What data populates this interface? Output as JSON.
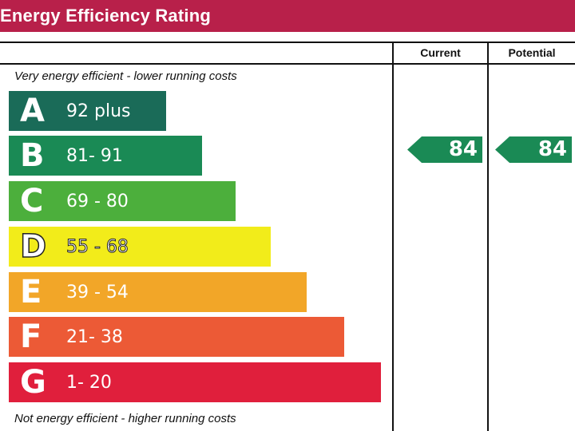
{
  "header": {
    "title": "Energy Efficiency Rating"
  },
  "columns": {
    "current": "Current",
    "potential": "Potential"
  },
  "notes": {
    "top": "Very energy efficient - lower running costs",
    "bottom": "Not energy efficient - higher running costs"
  },
  "chart_data": {
    "type": "bar",
    "categories": [
      "A",
      "B",
      "C",
      "D",
      "E",
      "F",
      "G"
    ],
    "bands": [
      {
        "letter": "A",
        "range": "92 plus",
        "color": "#1a6b58",
        "text_color": "#ffffff"
      },
      {
        "letter": "B",
        "range": "81- 91",
        "color": "#1a8a55",
        "text_color": "#ffffff"
      },
      {
        "letter": "C",
        "range": "69 - 80",
        "color": "#4caf3c",
        "text_color": "#ffffff"
      },
      {
        "letter": "D",
        "range": "55 - 68",
        "color": "#f2ec1a",
        "text_color": "#ffffff"
      },
      {
        "letter": "E",
        "range": "39 - 54",
        "color": "#f2a628",
        "text_color": "#ffffff"
      },
      {
        "letter": "F",
        "range": "21- 38",
        "color": "#ec5a36",
        "text_color": "#ffffff"
      },
      {
        "letter": "G",
        "range": "1- 20",
        "color": "#e01f3c",
        "text_color": "#ffffff"
      }
    ],
    "ratings": {
      "current": {
        "value": 84,
        "band": "B",
        "color": "#1a8a55"
      },
      "potential": {
        "value": 84,
        "band": "B",
        "color": "#1a8a55"
      }
    }
  }
}
